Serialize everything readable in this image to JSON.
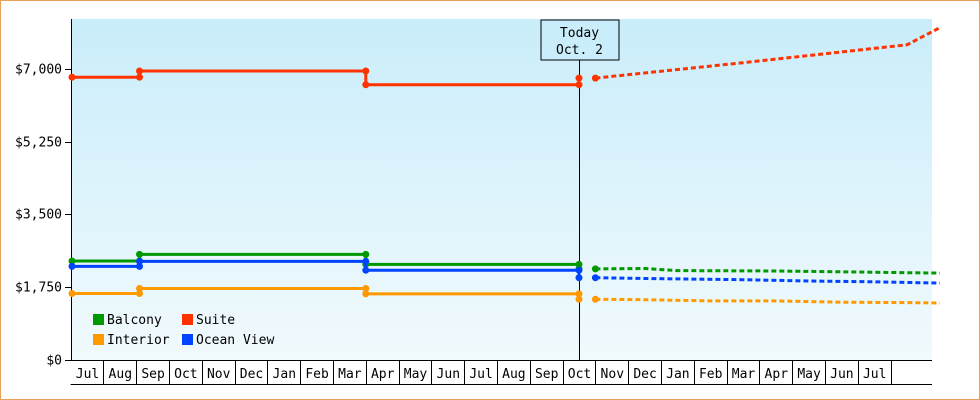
{
  "chart_data": {
    "type": "line",
    "style": "step",
    "x_axis": {
      "months": [
        "Jul",
        "Aug",
        "Sep",
        "Oct",
        "Nov",
        "Dec",
        "Jan",
        "Feb",
        "Mar",
        "Apr",
        "May",
        "Jun",
        "Jul",
        "Aug",
        "Sep",
        "Oct",
        "Nov",
        "Dec",
        "Jan",
        "Feb",
        "Mar",
        "Apr",
        "May",
        "Jun",
        "Jul"
      ]
    },
    "y_axis": {
      "ticks": [
        0,
        1750,
        3500,
        5250,
        7000
      ],
      "tick_labels": [
        "$0",
        "$1,750",
        "$3,500",
        "$5,250",
        "$7,000"
      ],
      "ylim": [
        0,
        8200
      ]
    },
    "today_marker": {
      "line1": "Today",
      "line2": "Oct. 2",
      "month_position": 15
    },
    "series": [
      {
        "name": "Suite",
        "color": "#ff3300",
        "history": [
          [
            0,
            6800
          ],
          [
            1.6,
            6800
          ],
          [
            1.6,
            6950
          ],
          [
            8.5,
            6950
          ],
          [
            8.5,
            6620
          ],
          [
            15,
            6620
          ],
          [
            15,
            6780
          ]
        ],
        "markers": [
          [
            0,
            6800
          ],
          [
            1.6,
            6800
          ],
          [
            1.6,
            6950
          ],
          [
            8.5,
            6950
          ],
          [
            8.5,
            6620
          ],
          [
            15,
            6620
          ],
          [
            15,
            6780
          ],
          [
            15.5,
            6780
          ]
        ],
        "forecast": [
          [
            15.5,
            6780
          ],
          [
            20,
            7150
          ],
          [
            25,
            7580
          ],
          [
            26,
            7990
          ]
        ]
      },
      {
        "name": "Balcony",
        "color": "#009900",
        "history": [
          [
            0,
            2380
          ],
          [
            1.6,
            2380
          ],
          [
            1.6,
            2540
          ],
          [
            8.5,
            2540
          ],
          [
            8.5,
            2300
          ],
          [
            15,
            2300
          ],
          [
            15,
            2190
          ]
        ],
        "markers": [
          [
            0,
            2380
          ],
          [
            1.6,
            2380
          ],
          [
            1.6,
            2540
          ],
          [
            8.5,
            2540
          ],
          [
            8.5,
            2300
          ],
          [
            15,
            2300
          ],
          [
            15,
            2190
          ],
          [
            15.5,
            2190
          ]
        ],
        "forecast": [
          [
            15.5,
            2190
          ],
          [
            17,
            2200
          ],
          [
            18,
            2150
          ],
          [
            21,
            2140
          ],
          [
            23,
            2120
          ],
          [
            25,
            2100
          ],
          [
            26,
            2090
          ]
        ]
      },
      {
        "name": "Ocean View",
        "color": "#0044ff",
        "history": [
          [
            0,
            2250
          ],
          [
            1.6,
            2250
          ],
          [
            1.6,
            2370
          ],
          [
            8.5,
            2370
          ],
          [
            8.5,
            2160
          ],
          [
            15,
            2160
          ],
          [
            15,
            1980
          ]
        ],
        "markers": [
          [
            0,
            2250
          ],
          [
            1.6,
            2250
          ],
          [
            1.6,
            2370
          ],
          [
            8.5,
            2370
          ],
          [
            8.5,
            2160
          ],
          [
            15,
            2160
          ],
          [
            15,
            1980
          ],
          [
            15.5,
            1980
          ]
        ],
        "forecast": [
          [
            15.5,
            1980
          ],
          [
            17,
            1960
          ],
          [
            20,
            1930
          ],
          [
            22,
            1900
          ],
          [
            24,
            1880
          ],
          [
            26,
            1850
          ]
        ]
      },
      {
        "name": "Interior",
        "color": "#ff9900",
        "history": [
          [
            0,
            1600
          ],
          [
            1.6,
            1600
          ],
          [
            1.6,
            1720
          ],
          [
            8.5,
            1720
          ],
          [
            8.5,
            1590
          ],
          [
            15,
            1590
          ],
          [
            15,
            1460
          ]
        ],
        "markers": [
          [
            0,
            1600
          ],
          [
            1.6,
            1600
          ],
          [
            1.6,
            1720
          ],
          [
            8.5,
            1720
          ],
          [
            8.5,
            1590
          ],
          [
            15,
            1590
          ],
          [
            15,
            1460
          ],
          [
            15.5,
            1460
          ]
        ],
        "forecast": [
          [
            15.5,
            1460
          ],
          [
            17,
            1450
          ],
          [
            19,
            1420
          ],
          [
            21,
            1420
          ],
          [
            23,
            1390
          ],
          [
            25,
            1380
          ],
          [
            26,
            1370
          ]
        ]
      }
    ],
    "legend": {
      "placement": "bottom-left",
      "rows": [
        [
          "Balcony",
          "Suite"
        ],
        [
          "Interior",
          "Ocean View"
        ]
      ]
    },
    "colors": {
      "plot_top": "#c9edfa",
      "plot_bottom": "#f1fafd",
      "frame_border": "#e3a15a"
    }
  }
}
